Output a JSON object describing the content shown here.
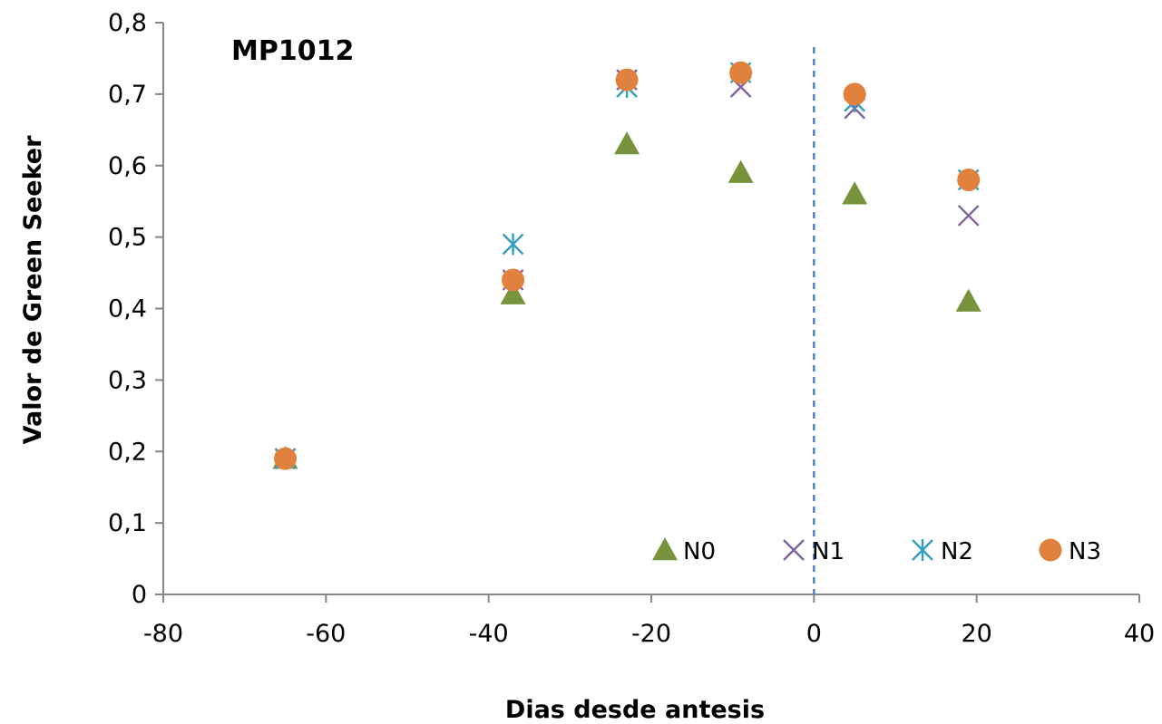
{
  "chart_data": {
    "type": "scatter",
    "title": "MP1012",
    "xlabel": "Dias desde antesis",
    "ylabel": "Valor de Green Seeker",
    "xlim": [
      -80,
      40
    ],
    "ylim": [
      0,
      0.8
    ],
    "x_ticks": [
      "-80",
      "-60",
      "-40",
      "-20",
      "0",
      "20",
      "40"
    ],
    "y_ticks": [
      "0",
      "0,1",
      "0,2",
      "0,3",
      "0,4",
      "0,5",
      "0,6",
      "0,7",
      "0,8"
    ],
    "reference_line": {
      "x": 0,
      "style": "dashed",
      "color": "#4f81bd"
    },
    "legend_position": "bottom-right",
    "grid": false,
    "series": [
      {
        "name": "N0",
        "marker": "triangle",
        "color": "#77933c",
        "x": [
          -65,
          -37,
          -23,
          -9,
          5,
          19
        ],
        "y": [
          0.19,
          0.42,
          0.63,
          0.59,
          0.56,
          0.41
        ]
      },
      {
        "name": "N1",
        "marker": "x",
        "color": "#7f63a0",
        "x": [
          -65,
          -37,
          -23,
          -9,
          5,
          19
        ],
        "y": [
          0.19,
          0.44,
          0.72,
          0.71,
          0.68,
          0.53
        ]
      },
      {
        "name": "N2",
        "marker": "star",
        "color": "#31a0c0",
        "x": [
          -65,
          -37,
          -23,
          -9,
          5,
          19
        ],
        "y": [
          0.19,
          0.49,
          0.71,
          0.73,
          0.69,
          0.58
        ]
      },
      {
        "name": "N3",
        "marker": "circle",
        "color": "#e0823d",
        "x": [
          -65,
          -37,
          -23,
          -9,
          5,
          19
        ],
        "y": [
          0.19,
          0.44,
          0.72,
          0.73,
          0.7,
          0.58
        ]
      }
    ]
  }
}
